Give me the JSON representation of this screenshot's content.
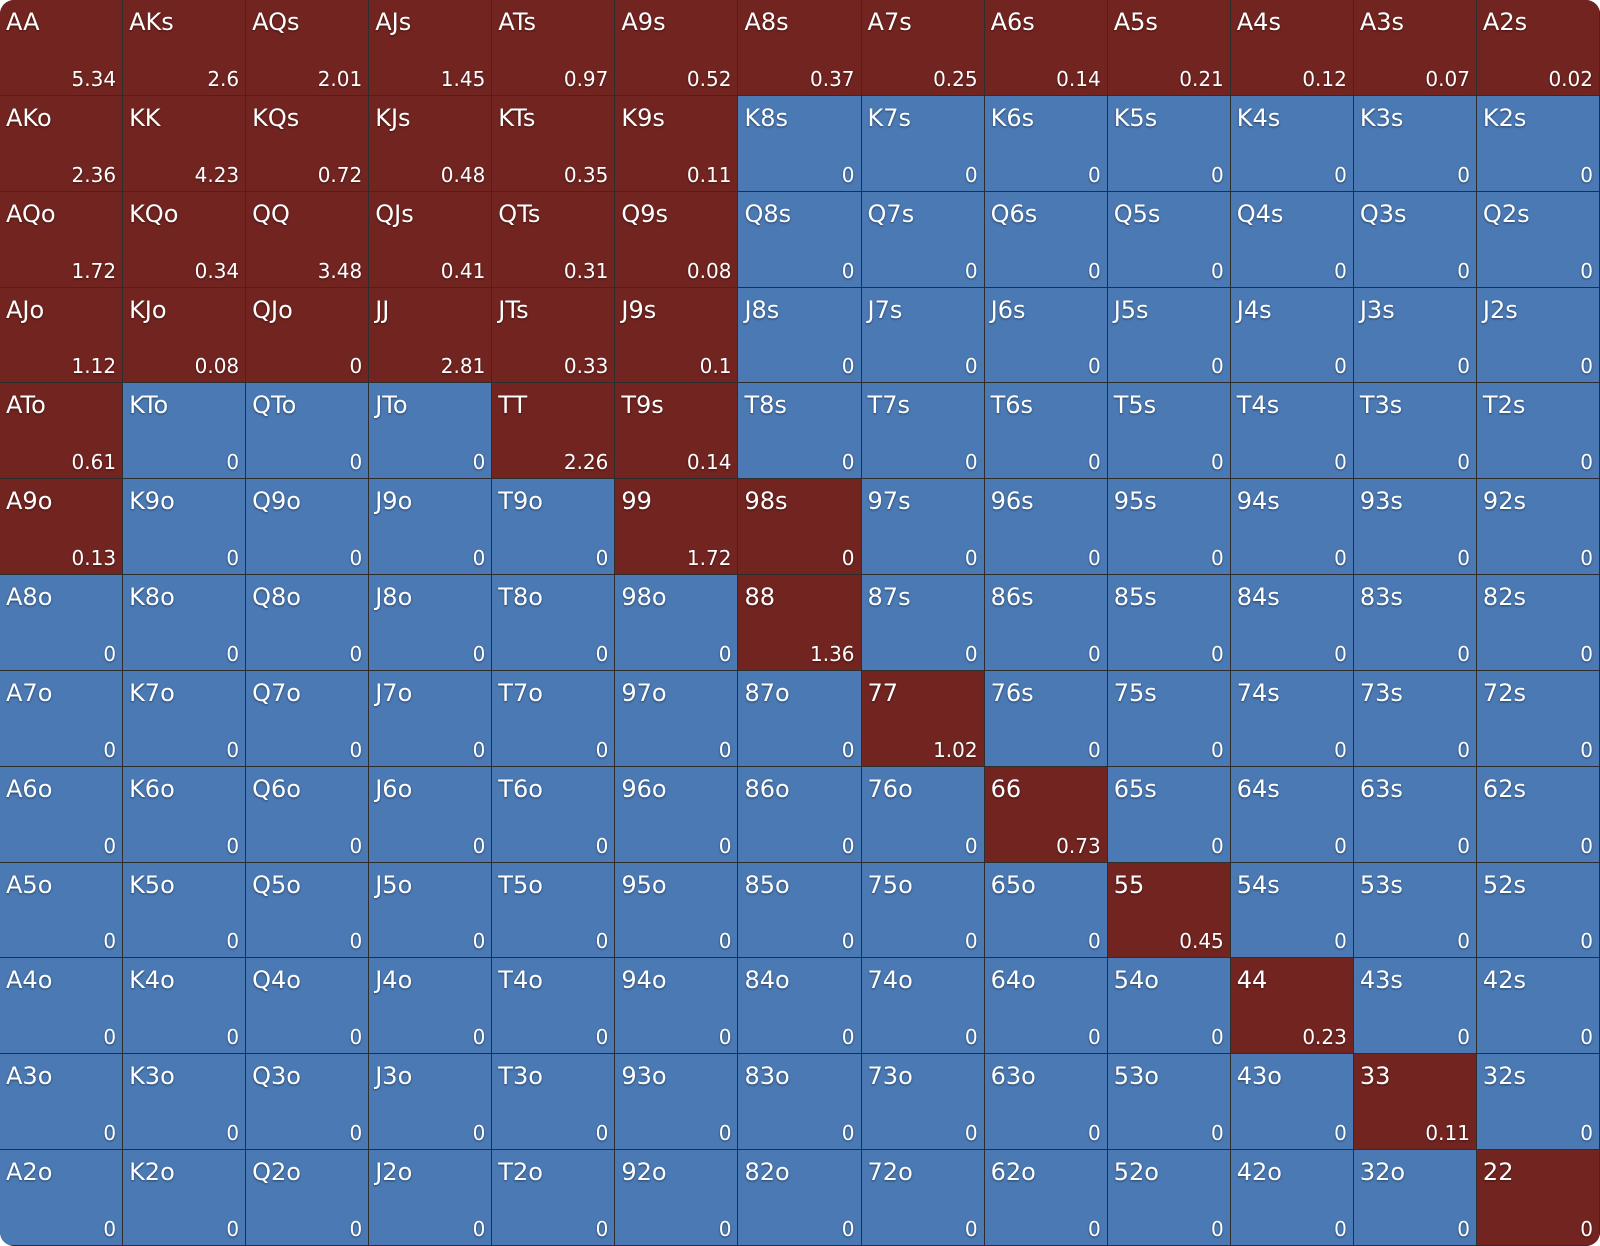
{
  "grid": {
    "hands": [
      [
        "AA",
        "AKs",
        "AQs",
        "AJs",
        "ATs",
        "A9s",
        "A8s",
        "A7s",
        "A6s",
        "A5s",
        "A4s",
        "A3s",
        "A2s"
      ],
      [
        "AKo",
        "KK",
        "KQs",
        "KJs",
        "KTs",
        "K9s",
        "K8s",
        "K7s",
        "K6s",
        "K5s",
        "K4s",
        "K3s",
        "K2s"
      ],
      [
        "AQo",
        "KQo",
        "QQ",
        "QJs",
        "QTs",
        "Q9s",
        "Q8s",
        "Q7s",
        "Q6s",
        "Q5s",
        "Q4s",
        "Q3s",
        "Q2s"
      ],
      [
        "AJo",
        "KJo",
        "QJo",
        "JJ",
        "JTs",
        "J9s",
        "J8s",
        "J7s",
        "J6s",
        "J5s",
        "J4s",
        "J3s",
        "J2s"
      ],
      [
        "ATo",
        "KTo",
        "QTo",
        "JTo",
        "TT",
        "T9s",
        "T8s",
        "T7s",
        "T6s",
        "T5s",
        "T4s",
        "T3s",
        "T2s"
      ],
      [
        "A9o",
        "K9o",
        "Q9o",
        "J9o",
        "T9o",
        "99",
        "98s",
        "97s",
        "96s",
        "95s",
        "94s",
        "93s",
        "92s"
      ],
      [
        "A8o",
        "K8o",
        "Q8o",
        "J8o",
        "T8o",
        "98o",
        "88",
        "87s",
        "86s",
        "85s",
        "84s",
        "83s",
        "82s"
      ],
      [
        "A7o",
        "K7o",
        "Q7o",
        "J7o",
        "T7o",
        "97o",
        "87o",
        "77",
        "76s",
        "75s",
        "74s",
        "73s",
        "72s"
      ],
      [
        "A6o",
        "K6o",
        "Q6o",
        "J6o",
        "T6o",
        "96o",
        "86o",
        "76o",
        "66",
        "65s",
        "64s",
        "63s",
        "62s"
      ],
      [
        "A5o",
        "K5o",
        "Q5o",
        "J5o",
        "T5o",
        "95o",
        "85o",
        "75o",
        "65o",
        "55",
        "54s",
        "53s",
        "52s"
      ],
      [
        "A4o",
        "K4o",
        "Q4o",
        "J4o",
        "T4o",
        "94o",
        "84o",
        "74o",
        "64o",
        "54o",
        "44",
        "43s",
        "42s"
      ],
      [
        "A3o",
        "K3o",
        "Q3o",
        "J3o",
        "T3o",
        "93o",
        "83o",
        "73o",
        "63o",
        "53o",
        "43o",
        "33",
        "32s"
      ],
      [
        "A2o",
        "K2o",
        "Q2o",
        "J2o",
        "T2o",
        "92o",
        "82o",
        "72o",
        "62o",
        "52o",
        "42o",
        "32o",
        "22"
      ]
    ],
    "values": [
      [
        5.34,
        2.6,
        2.01,
        1.45,
        0.97,
        0.52,
        0.37,
        0.25,
        0.14,
        0.21,
        0.12,
        0.07,
        0.02
      ],
      [
        2.36,
        4.23,
        0.72,
        0.48,
        0.35,
        0.11,
        0,
        0,
        0,
        0,
        0,
        0,
        0
      ],
      [
        1.72,
        0.34,
        3.48,
        0.41,
        0.31,
        0.08,
        0,
        0,
        0,
        0,
        0,
        0,
        0
      ],
      [
        1.12,
        0.08,
        0,
        2.81,
        0.33,
        0.1,
        0,
        0,
        0,
        0,
        0,
        0,
        0
      ],
      [
        0.61,
        0,
        0,
        0,
        2.26,
        0.14,
        0,
        0,
        0,
        0,
        0,
        0,
        0
      ],
      [
        0.13,
        0,
        0,
        0,
        0,
        1.72,
        0,
        0,
        0,
        0,
        0,
        0,
        0
      ],
      [
        0,
        0,
        0,
        0,
        0,
        0,
        1.36,
        0,
        0,
        0,
        0,
        0,
        0
      ],
      [
        0,
        0,
        0,
        0,
        0,
        0,
        0,
        1.02,
        0,
        0,
        0,
        0,
        0
      ],
      [
        0,
        0,
        0,
        0,
        0,
        0,
        0,
        0,
        0.73,
        0,
        0,
        0,
        0
      ],
      [
        0,
        0,
        0,
        0,
        0,
        0,
        0,
        0,
        0,
        0.45,
        0,
        0,
        0
      ],
      [
        0,
        0,
        0,
        0,
        0,
        0,
        0,
        0,
        0,
        0,
        0.23,
        0,
        0
      ],
      [
        0,
        0,
        0,
        0,
        0,
        0,
        0,
        0,
        0,
        0,
        0,
        0.11,
        0
      ],
      [
        0,
        0,
        0,
        0,
        0,
        0,
        0,
        0,
        0,
        0,
        0,
        0,
        0
      ]
    ],
    "colors": [
      [
        "#722420",
        "#722420",
        "#722420",
        "#722420",
        "#722420",
        "#722420",
        "#722420",
        "#722420",
        "#722420",
        "#722420",
        "#722420",
        "#722420",
        "#722420"
      ],
      [
        "#722420",
        "#722420",
        "#722420",
        "#722420",
        "#722420",
        "#722420",
        "#4a79b4",
        "#4a79b4",
        "#4a79b4",
        "#4a79b4",
        "#4a79b4",
        "#4a79b4",
        "#4a79b4"
      ],
      [
        "#722420",
        "#722420",
        "#722420",
        "#722420",
        "#722420",
        "#722420",
        "#4a79b4",
        "#4a79b4",
        "#4a79b4",
        "#4a79b4",
        "#4a79b4",
        "#4a79b4",
        "#4a79b4"
      ],
      [
        "#722420",
        "#722420",
        "#722420",
        "#722420",
        "#722420",
        "#722420",
        "#4a79b4",
        "#4a79b4",
        "#4a79b4",
        "#4a79b4",
        "#4a79b4",
        "#4a79b4",
        "#4a79b4"
      ],
      [
        "#722420",
        "#4a79b4",
        "#4a79b4",
        "#4a79b4",
        "#722420",
        "#722420",
        "#4a79b4",
        "#4a79b4",
        "#4a79b4",
        "#4a79b4",
        "#4a79b4",
        "#4a79b4",
        "#4a79b4"
      ],
      [
        "#722420",
        "#4a79b4",
        "#4a79b4",
        "#4a79b4",
        "#4a79b4",
        "#722420",
        "#722420",
        "#4a79b4",
        "#4a79b4",
        "#4a79b4",
        "#4a79b4",
        "#4a79b4",
        "#4a79b4"
      ],
      [
        "#4a79b4",
        "#4a79b4",
        "#4a79b4",
        "#4a79b4",
        "#4a79b4",
        "#4a79b4",
        "#722420",
        "#4a79b4",
        "#4a79b4",
        "#4a79b4",
        "#4a79b4",
        "#4a79b4",
        "#4a79b4"
      ],
      [
        "#4a79b4",
        "#4a79b4",
        "#4a79b4",
        "#4a79b4",
        "#4a79b4",
        "#4a79b4",
        "#4a79b4",
        "#722420",
        "#4a79b4",
        "#4a79b4",
        "#4a79b4",
        "#4a79b4",
        "#4a79b4"
      ],
      [
        "#4a79b4",
        "#4a79b4",
        "#4a79b4",
        "#4a79b4",
        "#4a79b4",
        "#4a79b4",
        "#4a79b4",
        "#4a79b4",
        "#722420",
        "#4a79b4",
        "#4a79b4",
        "#4a79b4",
        "#4a79b4"
      ],
      [
        "#4a79b4",
        "#4a79b4",
        "#4a79b4",
        "#4a79b4",
        "#4a79b4",
        "#4a79b4",
        "#4a79b4",
        "#4a79b4",
        "#4a79b4",
        "#722420",
        "#4a79b4",
        "#4a79b4",
        "#4a79b4"
      ],
      [
        "#4a79b4",
        "#4a79b4",
        "#4a79b4",
        "#4a79b4",
        "#4a79b4",
        "#4a79b4",
        "#4a79b4",
        "#4a79b4",
        "#4a79b4",
        "#4a79b4",
        "#722420",
        "#4a79b4",
        "#4a79b4"
      ],
      [
        "#4a79b4",
        "#4a79b4",
        "#4a79b4",
        "#4a79b4",
        "#4a79b4",
        "#4a79b4",
        "#4a79b4",
        "#4a79b4",
        "#4a79b4",
        "#4a79b4",
        "#4a79b4",
        "#722420",
        "#4a79b4"
      ],
      [
        "#4a79b4",
        "#4a79b4",
        "#4a79b4",
        "#4a79b4",
        "#4a79b4",
        "#4a79b4",
        "#4a79b4",
        "#4a79b4",
        "#4a79b4",
        "#4a79b4",
        "#4a79b4",
        "#4a79b4",
        "#722420"
      ]
    ]
  }
}
